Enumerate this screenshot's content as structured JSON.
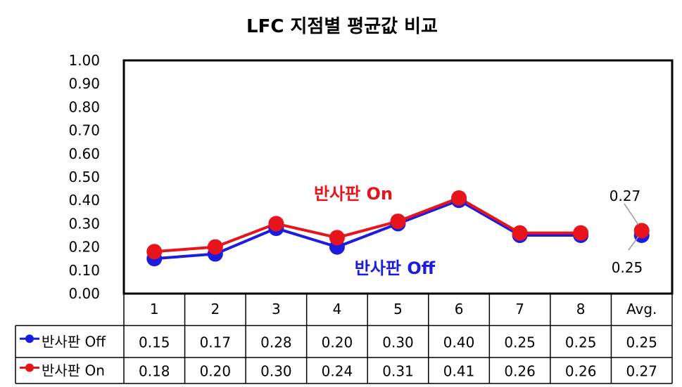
{
  "chart_data": {
    "type": "line",
    "title": "LFC 지점별 평균값 비교",
    "categories": [
      "1",
      "2",
      "3",
      "4",
      "5",
      "6",
      "7",
      "8",
      "Avg."
    ],
    "ylim": [
      0,
      1
    ],
    "yticks": [
      "0.00",
      "0.10",
      "0.20",
      "0.30",
      "0.40",
      "0.50",
      "0.60",
      "0.70",
      "0.80",
      "0.90",
      "1.00"
    ],
    "grid": false,
    "legend": "data-table",
    "series": [
      {
        "name": "반사판 Off",
        "color": "#1c1ce0",
        "values": [
          0.15,
          0.17,
          0.28,
          0.2,
          0.3,
          0.4,
          0.25,
          0.25,
          0.25
        ],
        "table_values": [
          "0.15",
          "0.17",
          "0.28",
          "0.20",
          "0.30",
          "0.40",
          "0.25",
          "0.25",
          "0.25"
        ]
      },
      {
        "name": "반사판 On",
        "color": "#e8141b",
        "values": [
          0.18,
          0.2,
          0.3,
          0.24,
          0.31,
          0.41,
          0.26,
          0.26,
          0.27
        ],
        "table_values": [
          "0.18",
          "0.20",
          "0.30",
          "0.24",
          "0.31",
          "0.41",
          "0.26",
          "0.26",
          "0.27"
        ]
      }
    ],
    "annotations": {
      "series_on": "반사판 On",
      "series_off": "반사판 Off",
      "avg_on": "0.27",
      "avg_off": "0.25"
    }
  }
}
